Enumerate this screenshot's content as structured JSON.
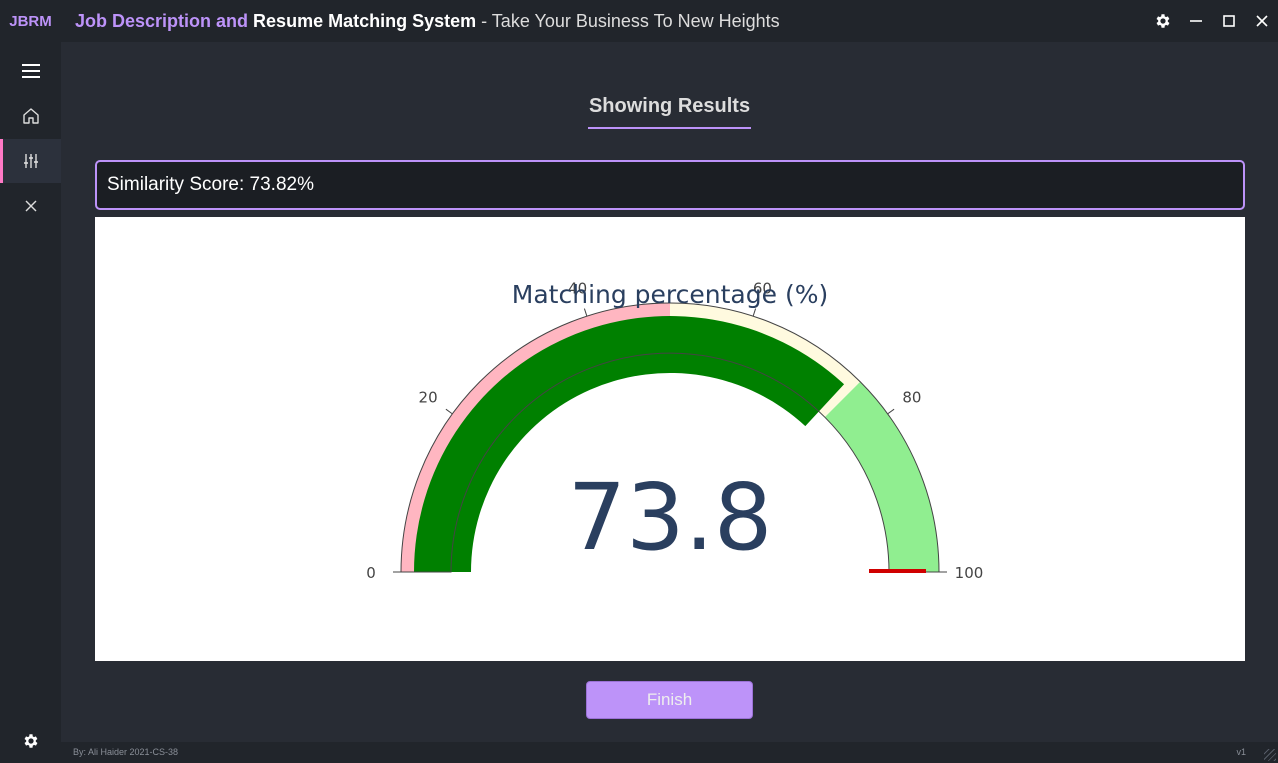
{
  "app": {
    "abbr": "JBRM",
    "title_part1": "Job Description and",
    "title_part2": "Resume Matching System",
    "title_part3": "- Take Your Business To New Heights"
  },
  "window_controls": [
    "gear-icon",
    "minimize-icon",
    "maximize-icon",
    "close-icon"
  ],
  "left_menu": [
    "hamburger-icon",
    "home-icon",
    "sliders-icon",
    "close-icon",
    "gear-icon"
  ],
  "main": {
    "heading": "Showing Results",
    "score_text": "Similarity Score: 73.82%",
    "finish_label": "Finish"
  },
  "footer": {
    "credits": "By: Ali Haider 2021-CS-38",
    "version": "v1"
  },
  "colors": {
    "accent": "#bd93f9",
    "active_indicator": "#ff79c6",
    "background": "#282c34",
    "sidebar": "#21252b"
  },
  "chart_data": {
    "type": "gauge",
    "title": "Matching percentage (%)",
    "value": 73.8,
    "value_label": "73.8",
    "range": [
      0,
      100
    ],
    "ticks": [
      0,
      20,
      40,
      60,
      80,
      100
    ],
    "tick_labels": [
      "0",
      "20",
      "40",
      "60",
      "80",
      "100"
    ],
    "steps": [
      {
        "range": [
          0,
          50
        ],
        "color": "#ffb6c1"
      },
      {
        "range": [
          50,
          75
        ],
        "color": "#fffadf"
      },
      {
        "range": [
          75,
          100
        ],
        "color": "#90ee90"
      }
    ],
    "bar_color": "#008000",
    "threshold": {
      "value": 100,
      "color": "#d00000"
    }
  }
}
